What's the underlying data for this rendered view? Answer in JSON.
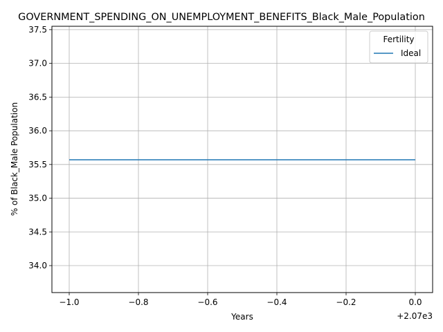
{
  "chart_data": {
    "type": "line",
    "title": "GOVERNMENT_SPENDING_ON_UNEMPLOYMENT_BENEFITS_Black_Male_Population",
    "xlabel": "Years",
    "ylabel": "% of Black_Male Population",
    "x_offset_label": "+2.07e3",
    "x_ticks": [
      "−1.0",
      "−0.8",
      "−0.6",
      "−0.4",
      "−0.2",
      "0.0"
    ],
    "y_ticks": [
      "34.0",
      "34.5",
      "35.0",
      "35.5",
      "36.0",
      "36.5",
      "37.0",
      "37.5"
    ],
    "xlim": [
      2068.95,
      2070.05
    ],
    "ylim": [
      33.6,
      37.55
    ],
    "grid": true,
    "legend": {
      "title": "Fertility",
      "placement": "top-right"
    },
    "series": [
      {
        "name": "Ideal",
        "color": "#1f77b4",
        "x": [
          2069,
          2070
        ],
        "y": [
          35.57,
          35.57
        ]
      }
    ]
  }
}
